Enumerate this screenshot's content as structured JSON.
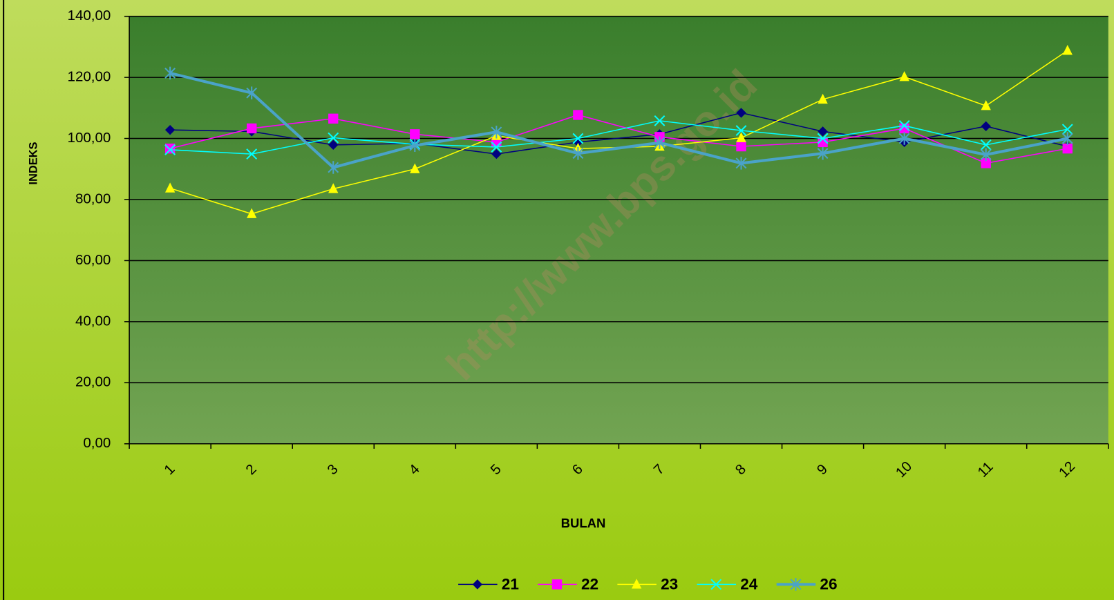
{
  "chart_data": {
    "type": "line",
    "y_label": "INDEKS",
    "x_label": "BULAN",
    "watermark": "http://www.bps.go.id",
    "categories": [
      "1",
      "2",
      "3",
      "4",
      "5",
      "6",
      "7",
      "8",
      "9",
      "10",
      "11",
      "12"
    ],
    "ylim": [
      0,
      140
    ],
    "yticks": [
      {
        "value": 0,
        "label": "0,00"
      },
      {
        "value": 20,
        "label": "20,00"
      },
      {
        "value": 40,
        "label": "40,00"
      },
      {
        "value": 60,
        "label": "60,00"
      },
      {
        "value": 80,
        "label": "80,00"
      },
      {
        "value": 100,
        "label": "100,00"
      },
      {
        "value": 120,
        "label": "120,00"
      },
      {
        "value": 140,
        "label": "140,00"
      }
    ],
    "grid": true,
    "legend": "bottom",
    "series": [
      {
        "name": "21",
        "color": "#000080",
        "marker": "diamond",
        "values": [
          102.8,
          102.3,
          97.9,
          98.4,
          94.9,
          98.8,
          101.4,
          108.4,
          102.3,
          98.8,
          104.0,
          97.4
        ]
      },
      {
        "name": "22",
        "color": "#ff00ff",
        "marker": "square",
        "values": [
          96.7,
          103.3,
          106.5,
          101.4,
          98.8,
          107.7,
          100.5,
          97.4,
          98.8,
          103.3,
          91.9,
          96.7
        ]
      },
      {
        "name": "23",
        "color": "#ffff00",
        "marker": "triangle",
        "values": [
          83.7,
          75.3,
          83.5,
          90.0,
          100.9,
          96.7,
          97.4,
          100.2,
          112.8,
          120.2,
          110.7,
          128.8
        ]
      },
      {
        "name": "24",
        "color": "#00ffff",
        "marker": "x",
        "values": [
          96.3,
          94.9,
          100.2,
          98.1,
          97.2,
          100.0,
          105.8,
          102.6,
          100.0,
          104.2,
          97.9,
          103.0
        ]
      },
      {
        "name": "26",
        "color": "#4aa3c8",
        "marker": "star",
        "width": 4,
        "values": [
          121.4,
          114.9,
          90.5,
          97.7,
          102.1,
          95.1,
          98.6,
          91.9,
          95.1,
          100.0,
          94.7,
          100.0
        ]
      }
    ]
  }
}
